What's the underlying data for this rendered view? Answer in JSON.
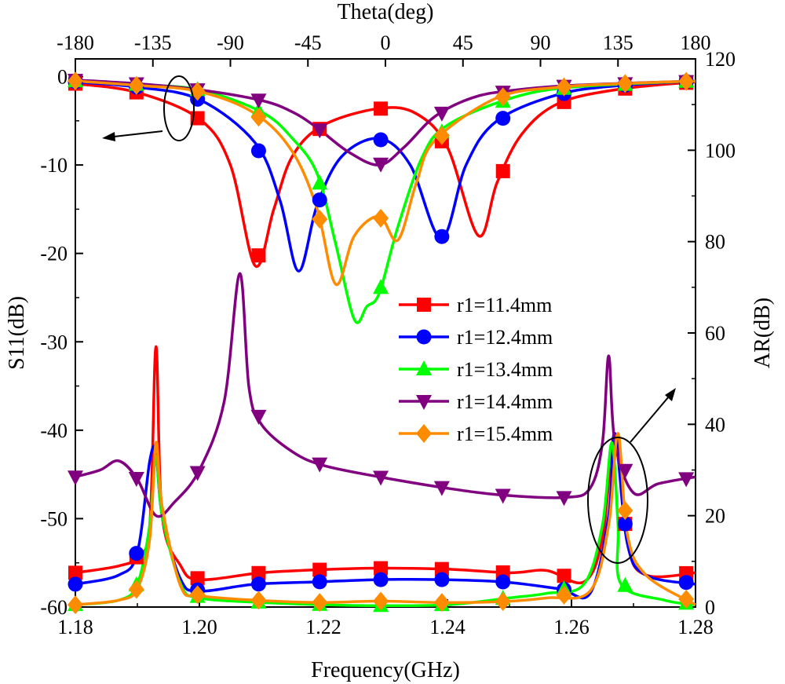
{
  "chart_data": {
    "type": "line",
    "xlabel": "Frequency(GHz)",
    "x_top_label": "Theta(deg)",
    "ylabel_left": "S11(dB)",
    "ylabel_right": "AR(dB)",
    "xlim": [
      1.18,
      1.28
    ],
    "x_top_lim": [
      -180,
      180
    ],
    "ylim_left": [
      -60,
      2
    ],
    "ylim_right": [
      0,
      120
    ],
    "x_ticks": [
      "1.18",
      "1.20",
      "1.22",
      "1.24",
      "1.26",
      "1.28"
    ],
    "x_top_ticks": [
      "-180",
      "-135",
      "-90",
      "-45",
      "0",
      "45",
      "90",
      "135",
      "180"
    ],
    "y_left_ticks": [
      "0",
      "-10",
      "-20",
      "-30",
      "-40",
      "-50",
      "-60"
    ],
    "y_right_ticks": [
      "0",
      "20",
      "40",
      "60",
      "80",
      "100",
      "120"
    ],
    "legend_position": "center-right",
    "grid": false,
    "series": [
      {
        "name": "r1=11.4mm",
        "color": "#ff0000",
        "marker": "square",
        "s11": [
          [
            1.18,
            -0.8
          ],
          [
            1.19,
            -1.8
          ],
          [
            1.2,
            -4.8
          ],
          [
            1.205,
            -10
          ],
          [
            1.209,
            -21.4
          ],
          [
            1.212,
            -15
          ],
          [
            1.215,
            -9
          ],
          [
            1.22,
            -5.5
          ],
          [
            1.229,
            -3.6
          ],
          [
            1.235,
            -4.2
          ],
          [
            1.24,
            -8
          ],
          [
            1.245,
            -18
          ],
          [
            1.248,
            -12
          ],
          [
            1.252,
            -6.5
          ],
          [
            1.258,
            -3
          ],
          [
            1.268,
            -1.4
          ],
          [
            1.28,
            -0.6
          ]
        ],
        "ar": [
          [
            1.18,
            7.5
          ],
          [
            1.187,
            9
          ],
          [
            1.19,
            11
          ],
          [
            1.192,
            18
          ],
          [
            1.193,
            57
          ],
          [
            1.194,
            20
          ],
          [
            1.197,
            9
          ],
          [
            1.2,
            6
          ],
          [
            1.21,
            7.5
          ],
          [
            1.22,
            8.2
          ],
          [
            1.229,
            8.5
          ],
          [
            1.24,
            8.3
          ],
          [
            1.25,
            7.5
          ],
          [
            1.256,
            8
          ],
          [
            1.262,
            5.5
          ],
          [
            1.265,
            15
          ],
          [
            1.267,
            38
          ],
          [
            1.269,
            14
          ],
          [
            1.272,
            7
          ],
          [
            1.28,
            7.5
          ]
        ]
      },
      {
        "name": "r1=12.4mm",
        "color": "#0000ff",
        "marker": "circle",
        "s11": [
          [
            1.18,
            -0.6
          ],
          [
            1.19,
            -1.2
          ],
          [
            1.2,
            -2.6
          ],
          [
            1.209,
            -7.5
          ],
          [
            1.213,
            -14
          ],
          [
            1.216,
            -22
          ],
          [
            1.219,
            -14.5
          ],
          [
            1.223,
            -9
          ],
          [
            1.229,
            -7
          ],
          [
            1.234,
            -10
          ],
          [
            1.239,
            -18.3
          ],
          [
            1.243,
            -10
          ],
          [
            1.248,
            -5
          ],
          [
            1.258,
            -2
          ],
          [
            1.268,
            -1
          ],
          [
            1.28,
            -0.5
          ]
        ],
        "ar": [
          [
            1.18,
            5
          ],
          [
            1.187,
            7
          ],
          [
            1.19,
            12
          ],
          [
            1.192,
            32
          ],
          [
            1.193,
            34
          ],
          [
            1.194,
            20
          ],
          [
            1.197,
            6
          ],
          [
            1.2,
            3.5
          ],
          [
            1.209,
            5
          ],
          [
            1.219,
            5.5
          ],
          [
            1.229,
            6
          ],
          [
            1.239,
            6
          ],
          [
            1.249,
            5.5
          ],
          [
            1.258,
            4
          ],
          [
            1.263,
            3
          ],
          [
            1.266,
            20
          ],
          [
            1.267,
            38
          ],
          [
            1.269,
            14
          ],
          [
            1.272,
            7
          ],
          [
            1.28,
            5
          ]
        ]
      },
      {
        "name": "r1=13.4mm",
        "color": "#00ff00",
        "marker": "triangle-up",
        "s11": [
          [
            1.18,
            -0.5
          ],
          [
            1.19,
            -0.9
          ],
          [
            1.2,
            -1.5
          ],
          [
            1.21,
            -4
          ],
          [
            1.215,
            -7
          ],
          [
            1.219,
            -11
          ],
          [
            1.222,
            -19
          ],
          [
            1.225,
            -27.5
          ],
          [
            1.227,
            -26
          ],
          [
            1.229,
            -24.5
          ],
          [
            1.232,
            -17
          ],
          [
            1.236,
            -9
          ],
          [
            1.24,
            -5.5
          ],
          [
            1.25,
            -2.5
          ],
          [
            1.26,
            -1.2
          ],
          [
            1.28,
            -0.5
          ]
        ],
        "ar": [
          [
            1.18,
            0.5
          ],
          [
            1.187,
            1.5
          ],
          [
            1.19,
            5
          ],
          [
            1.192,
            18
          ],
          [
            1.193,
            33
          ],
          [
            1.194,
            20
          ],
          [
            1.197,
            5
          ],
          [
            1.2,
            2
          ],
          [
            1.21,
            1
          ],
          [
            1.22,
            0.5
          ],
          [
            1.229,
            0.3
          ],
          [
            1.24,
            0.5
          ],
          [
            1.25,
            2
          ],
          [
            1.256,
            3
          ],
          [
            1.262,
            5
          ],
          [
            1.265,
            18
          ],
          [
            1.2665,
            36
          ],
          [
            1.2675,
            18
          ],
          [
            1.268,
            5
          ],
          [
            1.275,
            1.5
          ],
          [
            1.28,
            0.5
          ]
        ]
      },
      {
        "name": "r1=14.4mm",
        "color": "#800080",
        "marker": "triangle-down",
        "s11": [
          [
            1.18,
            -0.4
          ],
          [
            1.19,
            -0.8
          ],
          [
            1.2,
            -1.5
          ],
          [
            1.21,
            -2.7
          ],
          [
            1.215,
            -4
          ],
          [
            1.219,
            -5.8
          ],
          [
            1.224,
            -8.5
          ],
          [
            1.229,
            -10
          ],
          [
            1.233,
            -8
          ],
          [
            1.238,
            -4.5
          ],
          [
            1.244,
            -2.4
          ],
          [
            1.25,
            -1.6
          ],
          [
            1.26,
            -1
          ],
          [
            1.28,
            -0.5
          ]
        ],
        "ar": [
          [
            1.18,
            28.5
          ],
          [
            1.184,
            30
          ],
          [
            1.187,
            32
          ],
          [
            1.19,
            28
          ],
          [
            1.193,
            20
          ],
          [
            1.196,
            23
          ],
          [
            1.2,
            30
          ],
          [
            1.204,
            45
          ],
          [
            1.2065,
            73
          ],
          [
            1.208,
            48
          ],
          [
            1.21,
            40
          ],
          [
            1.215,
            34
          ],
          [
            1.22,
            31
          ],
          [
            1.229,
            28.5
          ],
          [
            1.24,
            26
          ],
          [
            1.249,
            24.5
          ],
          [
            1.259,
            24
          ],
          [
            1.263,
            26
          ],
          [
            1.265,
            36
          ],
          [
            1.266,
            55
          ],
          [
            1.267,
            36
          ],
          [
            1.27,
            25
          ],
          [
            1.274,
            27
          ],
          [
            1.28,
            28.5
          ]
        ]
      },
      {
        "name": "r1=15.4mm",
        "color": "#ff8c00",
        "marker": "diamond",
        "s11": [
          [
            1.18,
            -0.5
          ],
          [
            1.19,
            -1
          ],
          [
            1.2,
            -1.7
          ],
          [
            1.209,
            -4.2
          ],
          [
            1.215,
            -8.5
          ],
          [
            1.219,
            -15
          ],
          [
            1.222,
            -23.5
          ],
          [
            1.225,
            -18
          ],
          [
            1.229,
            -15.8
          ],
          [
            1.232,
            -18.5
          ],
          [
            1.235,
            -12
          ],
          [
            1.238,
            -7.2
          ],
          [
            1.248,
            -2.4
          ],
          [
            1.258,
            -1.2
          ],
          [
            1.268,
            -0.8
          ],
          [
            1.28,
            -0.5
          ]
        ],
        "ar": [
          [
            1.18,
            0.5
          ],
          [
            1.187,
            1.5
          ],
          [
            1.19,
            4
          ],
          [
            1.192,
            15
          ],
          [
            1.193,
            36
          ],
          [
            1.194,
            22
          ],
          [
            1.197,
            4.5
          ],
          [
            1.2,
            2.5
          ],
          [
            1.209,
            1.5
          ],
          [
            1.219,
            1
          ],
          [
            1.229,
            1.3
          ],
          [
            1.239,
            1
          ],
          [
            1.249,
            1.2
          ],
          [
            1.256,
            2
          ],
          [
            1.263,
            3.5
          ],
          [
            1.266,
            18
          ],
          [
            1.2675,
            38
          ],
          [
            1.269,
            16
          ],
          [
            1.272,
            7
          ],
          [
            1.28,
            0.5
          ]
        ]
      }
    ],
    "annotations": [
      {
        "type": "ellipse",
        "target": "s11 curves",
        "arrow_direction": "left"
      },
      {
        "type": "ellipse",
        "target": "ar peaks",
        "arrow_direction": "up-right"
      }
    ]
  }
}
